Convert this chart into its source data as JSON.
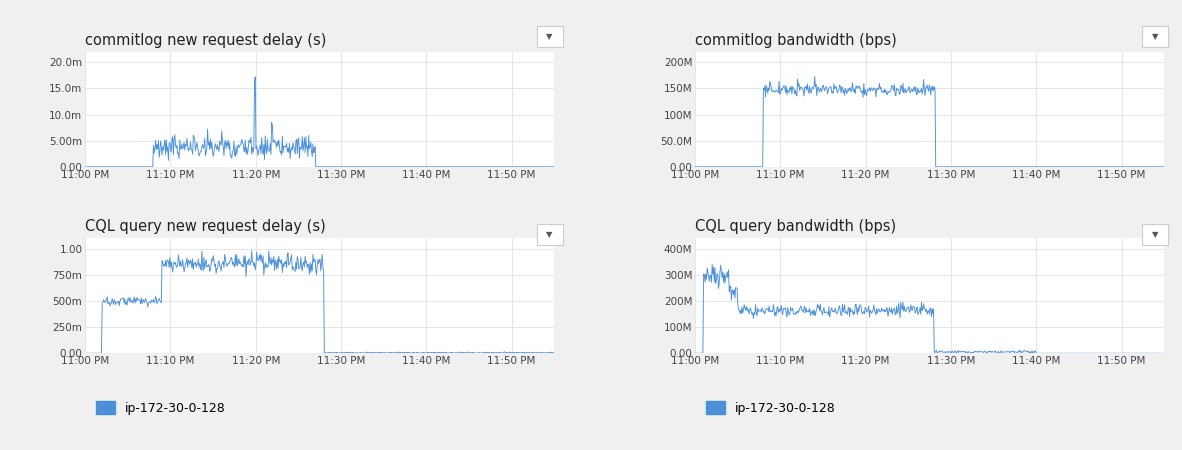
{
  "bg_color": "#f0f0f0",
  "plot_bg_color": "#ffffff",
  "line_color": "#4a90d9",
  "grid_color": "#e0e0e0",
  "text_color": "#222222",
  "tick_color": "#444444",
  "titles": [
    "commitlog new request delay (s)",
    "commitlog bandwidth (bps)",
    "CQL query new request delay (s)",
    "CQL query bandwidth (bps)"
  ],
  "x_tick_labels": [
    "11:00 PM",
    "11:10 PM",
    "11:20 PM",
    "11:30 PM",
    "11:40 PM",
    "11:50 PM"
  ],
  "x_ticks": [
    0,
    10,
    20,
    30,
    40,
    50
  ],
  "x_max": 55,
  "yticks_0": [
    0.0,
    0.005,
    0.01,
    0.015,
    0.02
  ],
  "ytick_labels_0": [
    "0.00",
    "5.00m",
    "10.0m",
    "15.0m",
    "20.0m"
  ],
  "ylim_0": [
    0,
    0.022
  ],
  "yticks_1": [
    0,
    50000000.0,
    100000000.0,
    150000000.0,
    200000000.0
  ],
  "ytick_labels_1": [
    "0.00",
    "50.0M",
    "100M",
    "150M",
    "200M"
  ],
  "ylim_1": [
    0,
    220000000.0
  ],
  "yticks_2": [
    0.0,
    0.25,
    0.5,
    0.75,
    1.0
  ],
  "ytick_labels_2": [
    "0.00",
    "250m",
    "500m",
    "750m",
    "1.00"
  ],
  "ylim_2": [
    0,
    1.1
  ],
  "yticks_3": [
    0,
    100000000.0,
    200000000.0,
    300000000.0,
    400000000.0
  ],
  "ytick_labels_3": [
    "0.00",
    "100M",
    "200M",
    "300M",
    "400M"
  ],
  "ylim_3": [
    0,
    440000000.0
  ],
  "legend_label": "ip-172-30-0-128",
  "legend_color": "#4a90d9"
}
